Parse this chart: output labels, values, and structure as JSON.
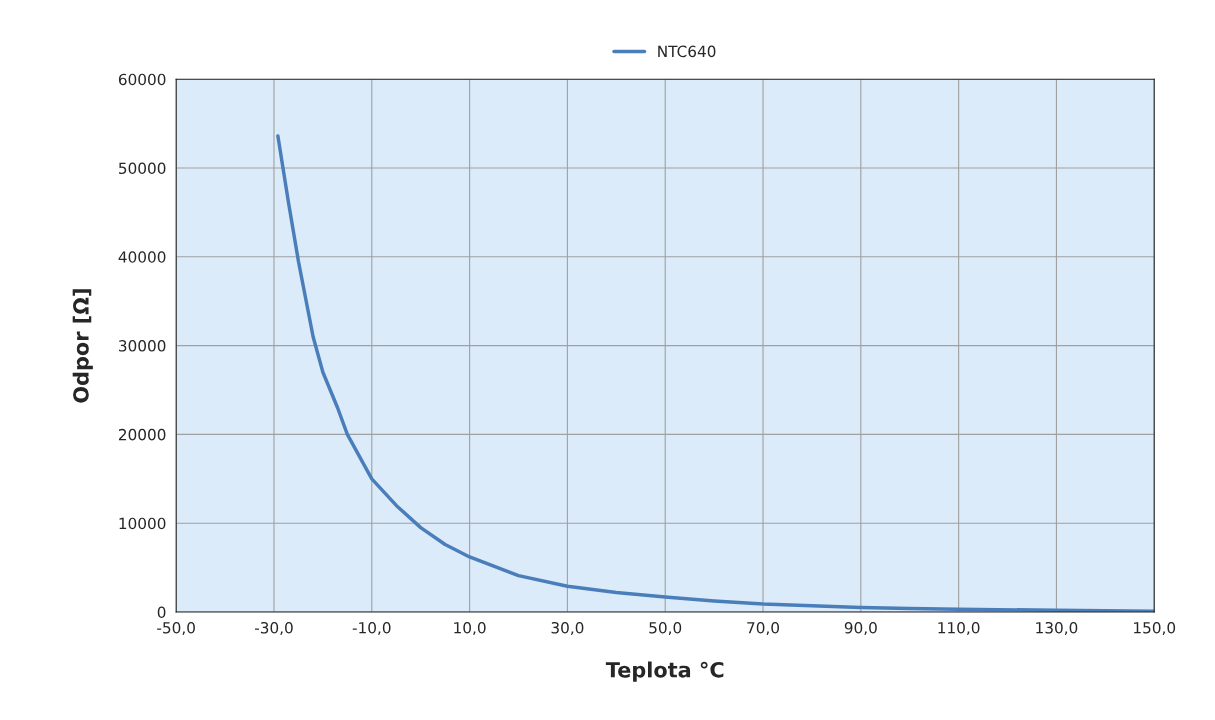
{
  "chart_data": {
    "type": "line",
    "xlabel": "Teplota °C",
    "ylabel": "Odpor [Ω]",
    "x": [
      -29.2,
      -27,
      -25,
      -22,
      -20,
      -17,
      -15,
      -12,
      -10,
      -5,
      0,
      5,
      10,
      20,
      30,
      40,
      50,
      60,
      70,
      80,
      90,
      100,
      110,
      130,
      150
    ],
    "series": [
      {
        "name": "NTC640",
        "color": "#4a7ebb",
        "values": [
          53600,
          46000,
          39500,
          31000,
          27000,
          23000,
          20000,
          17000,
          15000,
          12000,
          9500,
          7600,
          6200,
          4100,
          2900,
          2200,
          1700,
          1250,
          900,
          700,
          500,
          400,
          300,
          200,
          100
        ]
      }
    ],
    "xlim": [
      -50,
      150
    ],
    "xticks": [
      {
        "value": -50,
        "label": "-50,0"
      },
      {
        "value": -30,
        "label": "-30,0"
      },
      {
        "value": -10,
        "label": "-10,0"
      },
      {
        "value": 10,
        "label": "10,0"
      },
      {
        "value": 30,
        "label": "30,0"
      },
      {
        "value": 50,
        "label": "50,0"
      },
      {
        "value": 70,
        "label": "70,0"
      },
      {
        "value": 90,
        "label": "90,0"
      },
      {
        "value": 110,
        "label": "110,0"
      },
      {
        "value": 130,
        "label": "130,0"
      },
      {
        "value": 150,
        "label": "150,0"
      }
    ],
    "ylim": [
      0,
      60000
    ],
    "yticks": [
      0,
      10000,
      20000,
      30000,
      40000,
      50000,
      60000
    ],
    "grid": true,
    "legend": "top",
    "line_style": "solid",
    "marker": "none"
  }
}
